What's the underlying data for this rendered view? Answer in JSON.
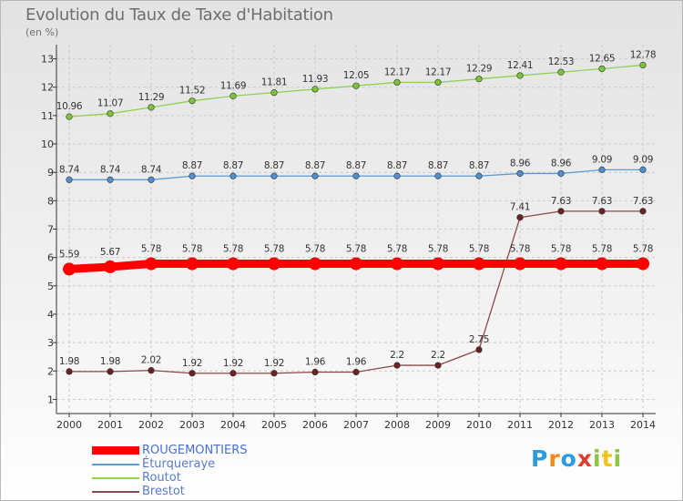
{
  "title": "Evolution du Taux de Taxe d'Habitation",
  "subtitle": "(en %)",
  "logo_text": "Proxiti",
  "chart_data": {
    "type": "line",
    "x": [
      "2000",
      "2001",
      "2002",
      "2003",
      "2004",
      "2005",
      "2006",
      "2007",
      "2008",
      "2009",
      "2010",
      "2011",
      "2012",
      "2013",
      "2014"
    ],
    "ylim": [
      0.5,
      13.5
    ],
    "yticks": [
      1,
      2,
      3,
      4,
      5,
      6,
      7,
      8,
      9,
      10,
      11,
      12,
      13
    ],
    "grid": true,
    "legend_position": "bottom-left",
    "series": [
      {
        "name": "ROUGEMONTIERS",
        "color": "#ff0000",
        "marker_color": "#ff0000",
        "emphasis": true,
        "values": [
          5.59,
          5.67,
          5.78,
          5.78,
          5.78,
          5.78,
          5.78,
          5.78,
          5.78,
          5.78,
          5.78,
          5.78,
          5.78,
          5.78,
          5.78
        ],
        "labels": [
          "5.59",
          "5.67",
          "5.78",
          "5.78",
          "5.78",
          "5.78",
          "5.78",
          "5.78",
          "5.78",
          "5.78",
          "5.78",
          "5.78",
          "5.78",
          "5.78",
          "5.78"
        ]
      },
      {
        "name": "Éturqueraye",
        "color": "#5b9bd5",
        "marker_color": "#4f8fcf",
        "values": [
          8.74,
          8.74,
          8.74,
          8.87,
          8.87,
          8.87,
          8.87,
          8.87,
          8.87,
          8.87,
          8.87,
          8.96,
          8.96,
          9.09,
          9.09
        ],
        "labels": [
          "8.74",
          "8.74",
          "8.74",
          "8.87",
          "8.87",
          "8.87",
          "8.87",
          "8.87",
          "8.87",
          "8.87",
          "8.87",
          "8.96",
          "8.96",
          "9.09",
          "9.09"
        ]
      },
      {
        "name": "Routot",
        "color": "#92d050",
        "marker_color": "#7cc43a",
        "values": [
          10.96,
          11.07,
          11.29,
          11.52,
          11.69,
          11.81,
          11.93,
          12.05,
          12.17,
          12.17,
          12.29,
          12.41,
          12.53,
          12.65,
          12.78
        ],
        "labels": [
          "10.96",
          "11.07",
          "11.29",
          "11.52",
          "11.69",
          "11.81",
          "11.93",
          "12.05",
          "12.17",
          "12.17",
          "12.29",
          "12.41",
          "12.53",
          "12.65",
          "12.78"
        ]
      },
      {
        "name": "Brestot",
        "color": "#8b4a4a",
        "marker_color": "#6b2222",
        "values": [
          1.98,
          1.98,
          2.02,
          1.92,
          1.92,
          1.92,
          1.96,
          1.96,
          2.2,
          2.2,
          2.75,
          7.41,
          7.63,
          7.63,
          7.63
        ],
        "labels": [
          "1.98",
          "1.98",
          "2.02",
          "1.92",
          "1.92",
          "1.92",
          "1.96",
          "1.96",
          "2.2",
          "2.2",
          "2.75",
          "7.41",
          "7.63",
          "7.63",
          "7.63"
        ]
      }
    ]
  }
}
